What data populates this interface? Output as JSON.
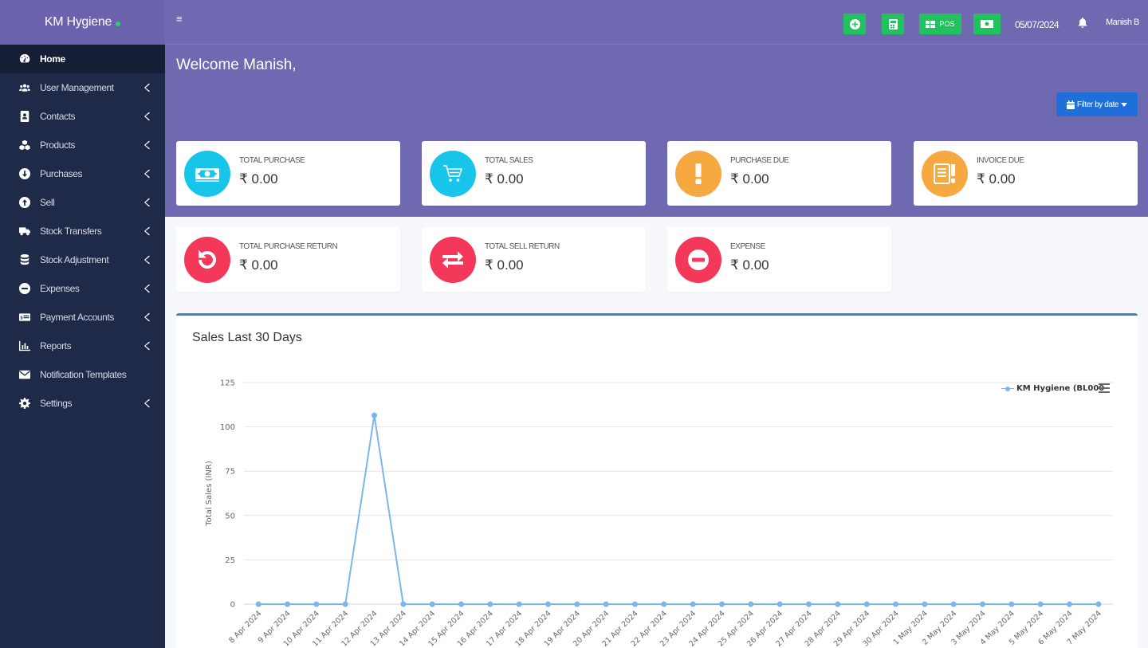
{
  "brand": {
    "name": "KM Hygiene"
  },
  "sidebar": {
    "items": [
      {
        "label": "Home",
        "icon": "dashboard-icon"
      },
      {
        "label": "User Management",
        "icon": "users-icon"
      },
      {
        "label": "Contacts",
        "icon": "address-book-icon"
      },
      {
        "label": "Products",
        "icon": "cubes-icon"
      },
      {
        "label": "Purchases",
        "icon": "arrow-circle-down-icon"
      },
      {
        "label": "Sell",
        "icon": "arrow-circle-up-icon"
      },
      {
        "label": "Stock Transfers",
        "icon": "truck-icon"
      },
      {
        "label": "Stock Adjustment",
        "icon": "database-icon"
      },
      {
        "label": "Expenses",
        "icon": "minus-circle-icon"
      },
      {
        "label": "Payment Accounts",
        "icon": "money-check-icon"
      },
      {
        "label": "Reports",
        "icon": "bar-chart-icon"
      },
      {
        "label": "Notification Templates",
        "icon": "envelope-icon"
      },
      {
        "label": "Settings",
        "icon": "cog-icon"
      }
    ]
  },
  "header": {
    "pos_label": "POS",
    "date": "05/07/2024",
    "user": "Manish B"
  },
  "hero": {
    "welcome": "Welcome Manish,",
    "filter_label": "Filter by date"
  },
  "cards": [
    {
      "label": "TOTAL PURCHASE",
      "value": "₹ 0.00",
      "icon": "money-bill-icon",
      "color": "#18c5ea"
    },
    {
      "label": "TOTAL SALES",
      "value": "₹ 0.00",
      "icon": "cart-icon",
      "color": "#18c5ea"
    },
    {
      "label": "PURCHASE DUE",
      "value": "₹ 0.00",
      "icon": "exclamation-icon",
      "color": "#f7a941"
    },
    {
      "label": "INVOICE DUE",
      "value": "₹ 0.00",
      "icon": "invoice-alert-icon",
      "color": "#f7a941"
    },
    {
      "label": "TOTAL PURCHASE RETURN",
      "value": "₹ 0.00",
      "icon": "undo-icon",
      "color": "#f4385a"
    },
    {
      "label": "TOTAL SELL RETURN",
      "value": "₹ 0.00",
      "icon": "exchange-icon",
      "color": "#f4385a"
    },
    {
      "label": "EXPENSE",
      "value": "₹ 0.00",
      "icon": "minus-circle-icon",
      "color": "#f4385a"
    }
  ],
  "chart_title": "Sales Last 30 Days",
  "chart_data": {
    "type": "line",
    "title": "Sales Last 30 Days",
    "xlabel": "",
    "ylabel": "Total Sales (INR)",
    "ylim": [
      0,
      125
    ],
    "yticks": [
      0,
      25,
      50,
      75,
      100,
      125
    ],
    "grid": true,
    "legend_position": "top-right",
    "categories": [
      "8 Apr 2024",
      "9 Apr 2024",
      "10 Apr 2024",
      "11 Apr 2024",
      "12 Apr 2024",
      "13 Apr 2024",
      "14 Apr 2024",
      "15 Apr 2024",
      "16 Apr 2024",
      "17 Apr 2024",
      "18 Apr 2024",
      "19 Apr 2024",
      "20 Apr 2024",
      "21 Apr 2024",
      "22 Apr 2024",
      "23 Apr 2024",
      "24 Apr 2024",
      "25 Apr 2024",
      "26 Apr 2024",
      "27 Apr 2024",
      "28 Apr 2024",
      "29 Apr 2024",
      "30 Apr 2024",
      "1 May 2024",
      "2 May 2024",
      "3 May 2024",
      "4 May 2024",
      "5 May 2024",
      "6 May 2024",
      "7 May 2024"
    ],
    "series": [
      {
        "name": "KM Hygiene (BL000",
        "color": "#7cb5ec",
        "values": [
          0,
          0,
          0,
          0,
          106.5,
          0,
          0,
          0,
          0,
          0,
          0,
          0,
          0,
          0,
          0,
          0,
          0,
          0,
          0,
          0,
          0,
          0,
          0,
          0,
          0,
          0,
          0,
          0,
          0,
          0
        ]
      }
    ]
  }
}
